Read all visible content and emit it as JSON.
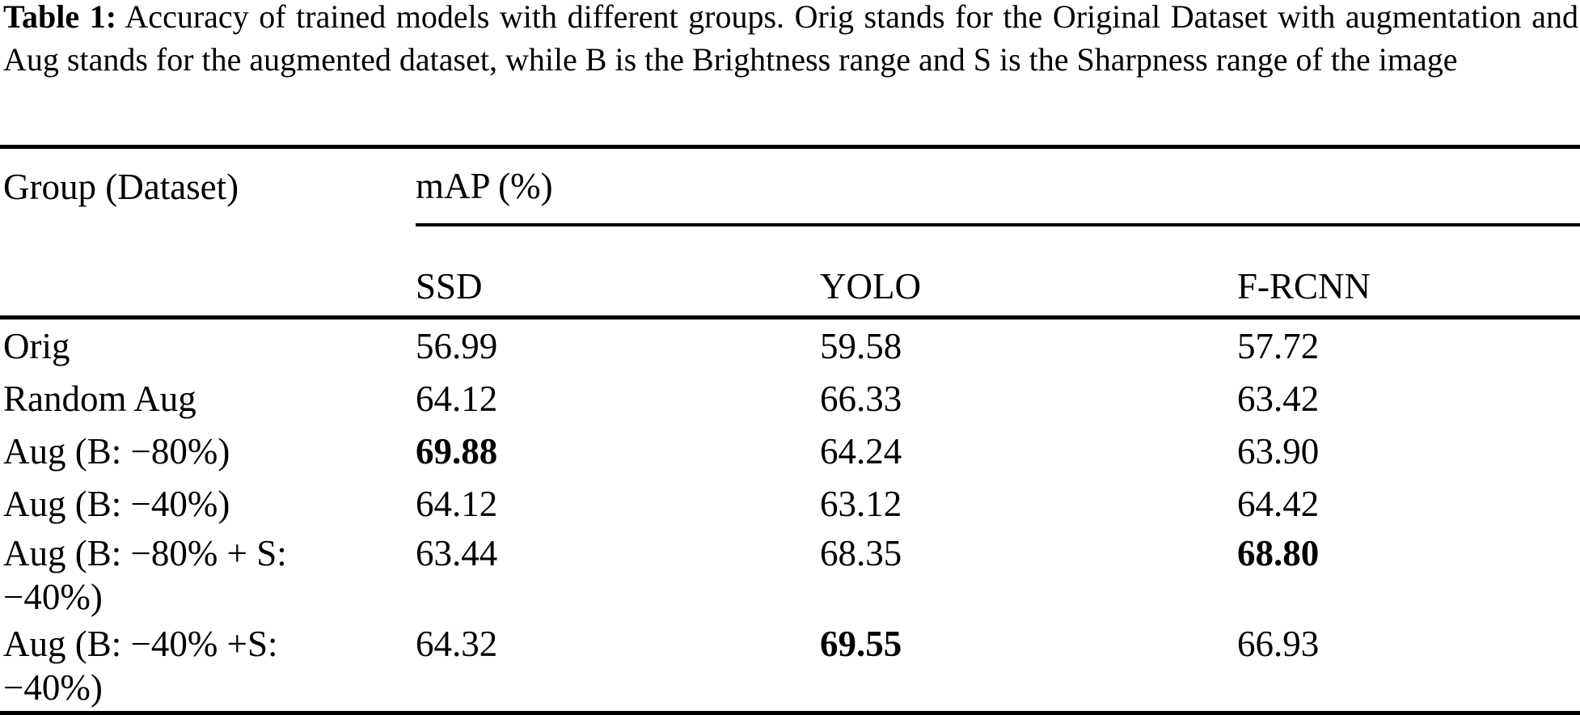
{
  "caption": {
    "label": "Table 1:",
    "text": "Accuracy of trained models with different groups. Orig stands for the Original Dataset with augmentation and Aug stands for the augmented dataset, while B is the Brightness range and S is the Sharpness range of the image"
  },
  "table": {
    "row_header": "Group (Dataset)",
    "group_header": "mAP (%)",
    "columns": [
      "SSD",
      "YOLO",
      "F-RCNN"
    ],
    "rows": [
      {
        "label": "Orig",
        "values": [
          "56.99",
          "59.58",
          "57.72"
        ],
        "bold": []
      },
      {
        "label": "Random Aug",
        "values": [
          "64.12",
          "66.33",
          "63.42"
        ],
        "bold": []
      },
      {
        "label": "Aug (B: −80%)",
        "values": [
          "69.88",
          "64.24",
          "63.90"
        ],
        "bold": [
          0
        ]
      },
      {
        "label": "Aug (B: −40%)",
        "values": [
          "64.12",
          "63.12",
          "64.42"
        ],
        "bold": []
      },
      {
        "label": "Aug (B: −80% + S:\n−40%)",
        "values": [
          "63.44",
          "68.35",
          "68.80"
        ],
        "bold": [
          2
        ]
      },
      {
        "label": "Aug (B: −40% +S:\n−40%)",
        "values": [
          "64.32",
          "69.55",
          "66.93"
        ],
        "bold": [
          1
        ]
      }
    ]
  }
}
